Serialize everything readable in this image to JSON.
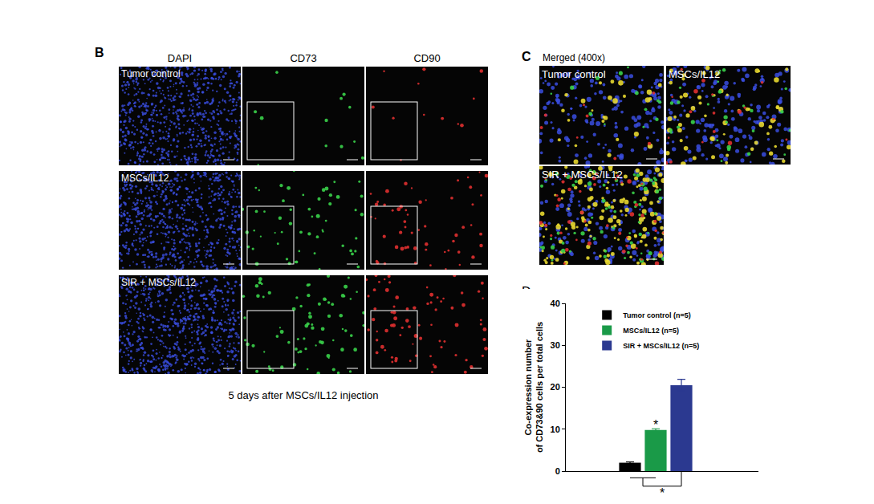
{
  "figure": {
    "panel_b": {
      "label": "B",
      "columns": [
        "DAPI",
        "CD73",
        "CD90"
      ],
      "rows": [
        "Tumor control",
        "MSCs/IL12",
        "SIR + MSCs/IL12"
      ],
      "caption": "5 days after MSCs/IL12 injection"
    },
    "panel_c": {
      "label": "C",
      "title": "Merged (400x)",
      "tiles": [
        "Tumor control",
        "MSCs/IL12",
        "SIR + MSCs/IL12"
      ]
    },
    "panel_d": {
      "label": "D"
    }
  },
  "chart_data": {
    "type": "bar",
    "categories": [
      null,
      null,
      null
    ],
    "ylabel": [
      "Co-expression number",
      "of CD73&90 cells per total cells"
    ],
    "ylim": [
      0,
      40
    ],
    "yticks": [
      0,
      10,
      20,
      30,
      40
    ],
    "grid": false,
    "legend": "top left",
    "tick_labels": "y",
    "series": [
      {
        "name": "Tumor control (n=5)",
        "color": "#000000",
        "values": [
          2,
          null,
          null
        ],
        "errors": [
          0.2,
          null,
          null
        ]
      },
      {
        "name": "MSCs/IL12 (n=5)",
        "color": "#1a9a48",
        "values": [
          null,
          9.8,
          null
        ],
        "errors": [
          null,
          0.3,
          null
        ]
      },
      {
        "name": "SIR + MSCs/IL12 (n=5)",
        "color": "#2b3990",
        "values": [
          null,
          null,
          20.5
        ],
        "errors": [
          null,
          null,
          1.4
        ]
      }
    ],
    "annotations": [
      {
        "text": "*",
        "category": 1
      },
      {
        "text": "*",
        "categories": [
          0,
          1,
          2
        ]
      }
    ]
  }
}
